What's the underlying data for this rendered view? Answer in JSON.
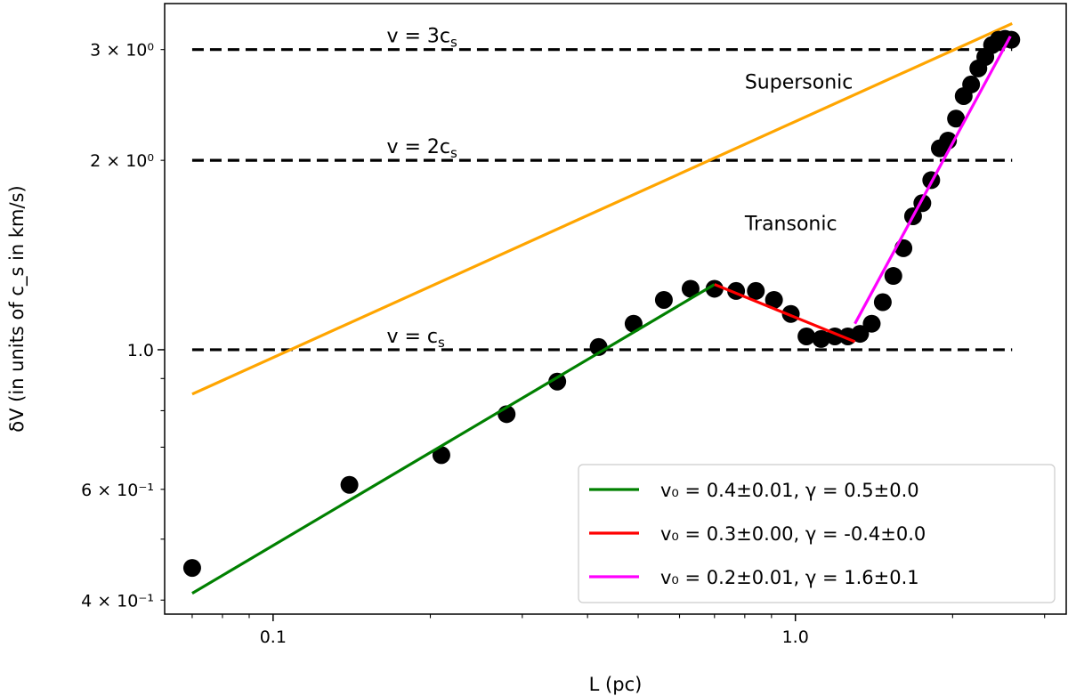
{
  "chart_data": {
    "type": "scatter",
    "xlabel": "L (pc)",
    "ylabel": "δV (in units of c_s in km/s)",
    "xscale": "log",
    "yscale": "log",
    "xlim": [
      0.062,
      3.3
    ],
    "ylim": [
      0.38,
      3.55
    ],
    "x_ticks": [
      {
        "value": 0.1,
        "label": "0.1"
      },
      {
        "value": 1.0,
        "label": "1.0"
      }
    ],
    "y_ticks": [
      {
        "value": 0.4,
        "label": "4 × 10⁻¹"
      },
      {
        "value": 0.6,
        "label": "6 × 10⁻¹"
      },
      {
        "value": 1.0,
        "label": "1.0"
      },
      {
        "value": 2.0,
        "label": "2 × 10⁰"
      },
      {
        "value": 3.0,
        "label": "3 × 10⁰"
      }
    ],
    "points": {
      "x": [
        0.07,
        0.14,
        0.21,
        0.28,
        0.35,
        0.42,
        0.49,
        0.56,
        0.63,
        0.7,
        0.77,
        0.84,
        0.91,
        0.98,
        1.05,
        1.12,
        1.19,
        1.26,
        1.33,
        1.4,
        1.47,
        1.54,
        1.61,
        1.68,
        1.75,
        1.82,
        1.89,
        1.96,
        2.03,
        2.1,
        2.17,
        2.24,
        2.31,
        2.38,
        2.45,
        2.52,
        2.59
      ],
      "y": [
        0.45,
        0.61,
        0.68,
        0.79,
        0.89,
        1.01,
        1.1,
        1.2,
        1.25,
        1.25,
        1.24,
        1.24,
        1.2,
        1.14,
        1.05,
        1.04,
        1.05,
        1.05,
        1.06,
        1.1,
        1.19,
        1.31,
        1.45,
        1.63,
        1.71,
        1.86,
        2.09,
        2.15,
        2.33,
        2.53,
        2.64,
        2.8,
        2.92,
        3.05,
        3.11,
        3.12,
        3.11
      ]
    },
    "horizontal_lines": [
      {
        "y": 1.0,
        "label": "v = c",
        "sub": "s"
      },
      {
        "y": 2.0,
        "label": "v = 2c",
        "sub": "s"
      },
      {
        "y": 3.0,
        "label": "v = 3c",
        "sub": "s"
      }
    ],
    "x_line_range": [
      0.07,
      2.6
    ],
    "annotations": [
      {
        "text": "Supersonic",
        "x": 0.8,
        "y": 2.6
      },
      {
        "text": "Transonic",
        "x": 0.8,
        "y": 1.55
      }
    ],
    "fits": [
      {
        "name": "v₀ = 0.4±0.01, γ = 0.5±0.0",
        "color": "#008000",
        "x": [
          0.07,
          0.7
        ],
        "y": [
          0.41,
          1.27
        ]
      },
      {
        "name": "v₀ = 0.3±0.00, γ = -0.4±0.0",
        "color": "#ff0000",
        "x": [
          0.7,
          1.3
        ],
        "y": [
          1.27,
          1.03
        ]
      },
      {
        "name": "v₀ = 0.2±0.01, γ = 1.6±0.1",
        "color": "#ff00ff",
        "x": [
          1.3,
          2.58
        ],
        "y": [
          1.1,
          3.15
        ]
      }
    ],
    "reference_line": {
      "color": "#ffa500",
      "x": [
        0.07,
        2.6
      ],
      "y": [
        0.85,
        3.3
      ]
    },
    "legend_position": "lower-right"
  }
}
